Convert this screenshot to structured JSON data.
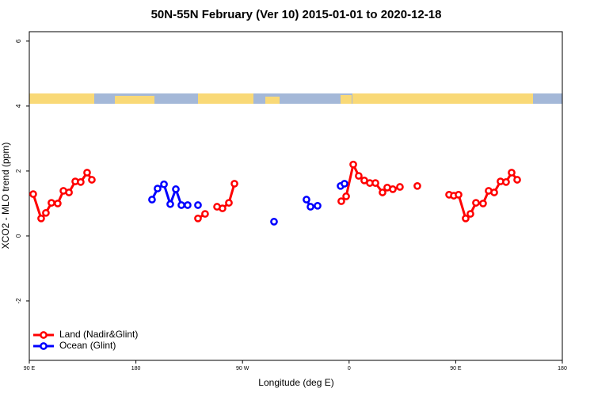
{
  "chart_data": {
    "type": "line",
    "title": "50N-55N February (Ver 10)   2015-01-01 to 2020-12-18",
    "x_label": "Longitude (deg E)",
    "y_label": "XCO2 - MLO trend (ppm)",
    "xlim": [
      90,
      540
    ],
    "xticks": [
      {
        "value": 90,
        "label": "90 E"
      },
      180,
      {
        "value": 270,
        "label": "90 W"
      },
      {
        "value": 360,
        "label": "0"
      },
      {
        "value": 450,
        "label": "90 E"
      },
      {
        "value": 540,
        "label": "180"
      }
    ],
    "ylim": [
      -3.83,
      6.29
    ],
    "yticks": [
      -2,
      0,
      2,
      4,
      6
    ],
    "legend": "bottom-left",
    "series": [
      {
        "name": "Land (Nadir&Glint)",
        "color": "#ff0000",
        "x": [
          93.3,
          100,
          104,
          108.7,
          114,
          118.8,
          123.5,
          128.8,
          133.4,
          138.8,
          142.8,
          null,
          232.4,
          238.4,
          null,
          248.5,
          253.1,
          258.5,
          263.2,
          null,
          353.4,
          357.5,
          363.5,
          368.1,
          372.8,
          377.5,
          382.2,
          388.2,
          392.2,
          396.9,
          402.9,
          null,
          417.6,
          null,
          444.4,
          448.4,
          452.4,
          458.4,
          462.4,
          467.1,
          473.1,
          477.8,
          482.5,
          487.8,
          492.5,
          497.2,
          501.9
        ],
        "values": [
          1.29,
          0.54,
          0.71,
          1.02,
          1.0,
          1.39,
          1.34,
          1.68,
          1.66,
          1.95,
          1.73,
          null,
          0.54,
          0.68,
          null,
          0.9,
          0.85,
          1.02,
          1.61,
          null,
          1.07,
          1.22,
          2.2,
          1.85,
          1.71,
          1.63,
          1.63,
          1.34,
          1.49,
          1.44,
          1.51,
          null,
          1.54,
          null,
          1.27,
          1.24,
          1.27,
          0.54,
          0.68,
          1.02,
          1.0,
          1.39,
          1.34,
          1.68,
          1.66,
          1.95,
          1.73
        ]
      },
      {
        "name": "Ocean (Glint)",
        "color": "#0000ff",
        "x": [
          193.6,
          198.3,
          203.7,
          209,
          213.7,
          218.4,
          223.7,
          null,
          232.4,
          null,
          296.6,
          null,
          324,
          327.4,
          333.4,
          null,
          352.8,
          356.1
        ],
        "values": [
          1.12,
          1.46,
          1.59,
          0.98,
          1.44,
          0.95,
          0.95,
          null,
          0.95,
          null,
          0.44,
          null,
          1.12,
          0.9,
          0.93,
          null,
          1.54,
          1.61
        ]
      }
    ]
  }
}
